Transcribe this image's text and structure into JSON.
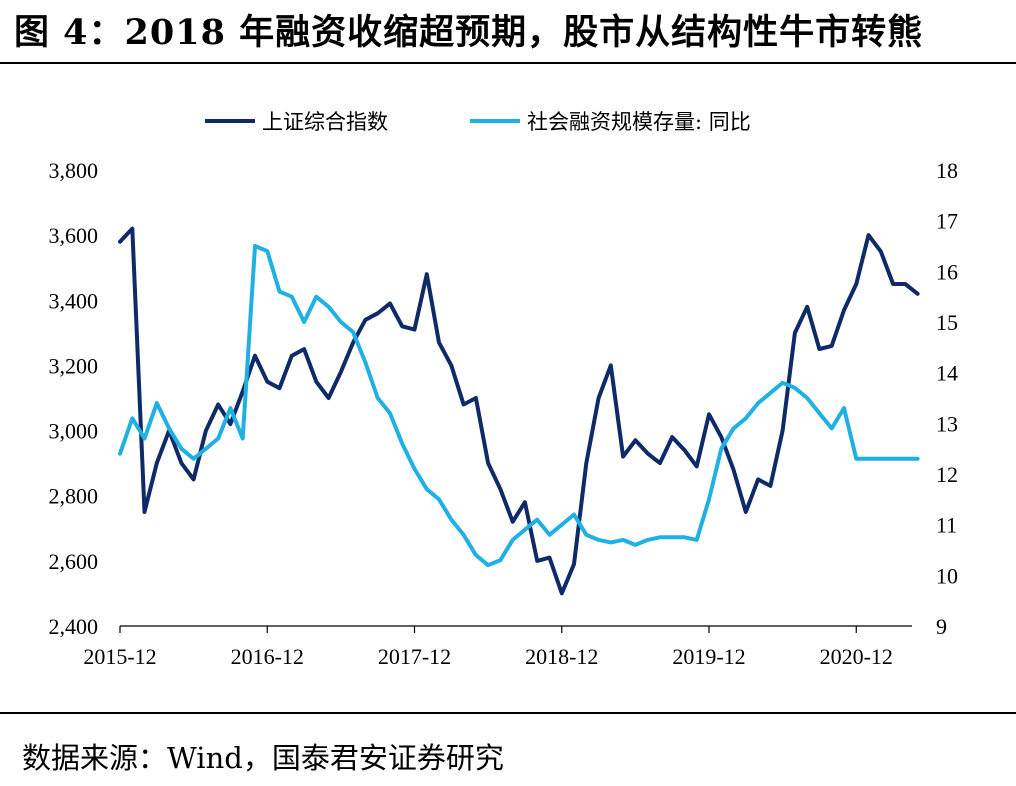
{
  "header": {
    "title": "图 4：2018 年融资收缩超预期，股市从结构性牛市转熊"
  },
  "footer": {
    "source": "数据来源：Wind，国泰君安证券研究"
  },
  "colors": {
    "series1": "#0e2a68",
    "series2": "#1fb0e4",
    "axis": "#000000"
  },
  "chart_data": {
    "type": "line",
    "title": "",
    "legend_position": "top-center",
    "grid": false,
    "x_ticks": [
      "2015-12",
      "2016-12",
      "2017-12",
      "2018-12",
      "2019-12",
      "2020-12"
    ],
    "x_range": [
      "2015-12",
      "2021-05"
    ],
    "left_axis": {
      "ticks": [
        "3,800",
        "3,600",
        "3,400",
        "3,200",
        "3,000",
        "2,800",
        "2,600",
        "2,400"
      ],
      "range": [
        2400,
        3800
      ]
    },
    "right_axis": {
      "ticks": [
        "18",
        "17",
        "16",
        "15",
        "14",
        "13",
        "12",
        "11",
        "10",
        "9"
      ],
      "range": [
        9,
        18
      ]
    },
    "series": [
      {
        "name": "上证综合指数",
        "axis": "left",
        "x": [
          "2015-12",
          "2016-01",
          "2016-02",
          "2016-03",
          "2016-04",
          "2016-05",
          "2016-06",
          "2016-07",
          "2016-08",
          "2016-09",
          "2016-10",
          "2016-11",
          "2016-12",
          "2017-01",
          "2017-02",
          "2017-03",
          "2017-04",
          "2017-05",
          "2017-06",
          "2017-07",
          "2017-08",
          "2017-09",
          "2017-10",
          "2017-11",
          "2017-12",
          "2018-01",
          "2018-02",
          "2018-03",
          "2018-04",
          "2018-05",
          "2018-06",
          "2018-07",
          "2018-08",
          "2018-09",
          "2018-10",
          "2018-11",
          "2018-12",
          "2019-01",
          "2019-02",
          "2019-03",
          "2019-04",
          "2019-05",
          "2019-06",
          "2019-07",
          "2019-08",
          "2019-09",
          "2019-10",
          "2019-11",
          "2019-12",
          "2020-01",
          "2020-02",
          "2020-03",
          "2020-04",
          "2020-05",
          "2020-06",
          "2020-07",
          "2020-08",
          "2020-09",
          "2020-10",
          "2020-11",
          "2020-12",
          "2021-01",
          "2021-02",
          "2021-03",
          "2021-04",
          "2021-05"
        ],
        "values": [
          3580,
          3620,
          2750,
          2900,
          3000,
          2900,
          2850,
          3000,
          3080,
          3020,
          3120,
          3230,
          3150,
          3130,
          3230,
          3250,
          3150,
          3100,
          3180,
          3270,
          3340,
          3360,
          3390,
          3320,
          3310,
          3480,
          3270,
          3200,
          3080,
          3100,
          2900,
          2820,
          2720,
          2780,
          2600,
          2610,
          2500,
          2590,
          2900,
          3100,
          3200,
          2920,
          2970,
          2930,
          2900,
          2980,
          2940,
          2890,
          3050,
          2980,
          2880,
          2750,
          2850,
          2830,
          3000,
          3300,
          3380,
          3250,
          3260,
          3370,
          3450,
          3600,
          3550,
          3450,
          3450,
          3420
        ]
      },
      {
        "name": "社会融资规模存量: 同比",
        "axis": "right",
        "x": [
          "2015-12",
          "2016-01",
          "2016-02",
          "2016-03",
          "2016-04",
          "2016-05",
          "2016-06",
          "2016-07",
          "2016-08",
          "2016-09",
          "2016-10",
          "2016-11",
          "2016-12",
          "2017-01",
          "2017-02",
          "2017-03",
          "2017-04",
          "2017-05",
          "2017-06",
          "2017-07",
          "2017-08",
          "2017-09",
          "2017-10",
          "2017-11",
          "2017-12",
          "2018-01",
          "2018-02",
          "2018-03",
          "2018-04",
          "2018-05",
          "2018-06",
          "2018-07",
          "2018-08",
          "2018-09",
          "2018-10",
          "2018-11",
          "2018-12",
          "2019-01",
          "2019-02",
          "2019-03",
          "2019-04",
          "2019-05",
          "2019-06",
          "2019-07",
          "2019-08",
          "2019-09",
          "2019-10",
          "2019-11",
          "2019-12",
          "2020-01",
          "2020-02",
          "2020-03",
          "2020-04",
          "2020-05",
          "2020-06",
          "2020-07",
          "2020-08",
          "2020-09",
          "2020-10",
          "2020-11",
          "2020-12",
          "2021-01",
          "2021-02",
          "2021-03",
          "2021-04",
          "2021-05"
        ],
        "values": [
          12.4,
          13.1,
          12.7,
          13.4,
          12.9,
          12.5,
          12.3,
          12.5,
          12.7,
          13.3,
          12.7,
          16.5,
          16.4,
          15.6,
          15.5,
          15.0,
          15.5,
          15.3,
          15.0,
          14.8,
          14.2,
          13.5,
          13.2,
          12.6,
          12.1,
          11.7,
          11.5,
          11.1,
          10.8,
          10.4,
          10.2,
          10.3,
          10.7,
          10.9,
          11.1,
          10.8,
          11.0,
          11.2,
          10.8,
          10.7,
          10.65,
          10.7,
          10.6,
          10.7,
          10.75,
          10.75,
          10.75,
          10.7,
          11.5,
          12.5,
          12.9,
          13.1,
          13.4,
          13.6,
          13.8,
          13.7,
          13.5,
          13.2,
          12.9,
          13.3,
          12.3,
          12.3,
          12.3,
          12.3,
          12.3,
          12.3
        ]
      }
    ]
  }
}
